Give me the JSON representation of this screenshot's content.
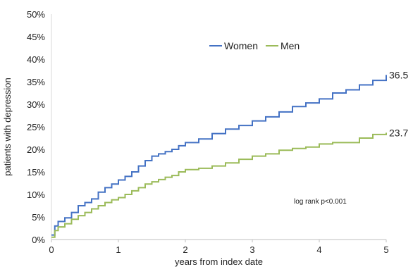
{
  "chart_data": {
    "type": "line",
    "xlabel": "years from index date",
    "ylabel": "patients with depression",
    "xlim": [
      0,
      5
    ],
    "ylim": [
      0,
      50
    ],
    "x_ticks": [
      "0",
      "1",
      "2",
      "3",
      "4",
      "5"
    ],
    "y_ticks": [
      "0%",
      "5%",
      "10%",
      "15%",
      "20%",
      "25%",
      "30%",
      "35%",
      "40%",
      "45%",
      "50%"
    ],
    "grid": false,
    "legend_position": "top-center",
    "annotation": "log rank p<0.001",
    "series": [
      {
        "name": "Women",
        "color": "#4472C4",
        "end_label": "36.5",
        "x": [
          0,
          0.05,
          0.1,
          0.2,
          0.3,
          0.4,
          0.5,
          0.6,
          0.7,
          0.8,
          0.9,
          1.0,
          1.1,
          1.2,
          1.3,
          1.4,
          1.5,
          1.6,
          1.7,
          1.8,
          1.9,
          2.0,
          2.2,
          2.4,
          2.6,
          2.8,
          3.0,
          3.2,
          3.4,
          3.6,
          3.8,
          4.0,
          4.2,
          4.4,
          4.6,
          4.8,
          5.0
        ],
        "y": [
          1.0,
          3.0,
          4.0,
          4.8,
          6.0,
          7.5,
          8.2,
          9.0,
          10.5,
          11.5,
          12.3,
          13.2,
          14.0,
          15.0,
          16.3,
          17.5,
          18.5,
          19.0,
          19.5,
          20.0,
          20.8,
          21.5,
          22.3,
          23.5,
          24.5,
          25.3,
          26.3,
          27.2,
          28.3,
          29.5,
          30.3,
          31.2,
          32.5,
          33.2,
          34.3,
          35.3,
          36.5
        ]
      },
      {
        "name": "Men",
        "color": "#9BBB59",
        "end_label": "23.7",
        "x": [
          0,
          0.05,
          0.1,
          0.2,
          0.3,
          0.4,
          0.5,
          0.6,
          0.7,
          0.8,
          0.9,
          1.0,
          1.1,
          1.2,
          1.3,
          1.4,
          1.5,
          1.6,
          1.7,
          1.8,
          1.9,
          2.0,
          2.2,
          2.4,
          2.6,
          2.8,
          3.0,
          3.2,
          3.4,
          3.6,
          3.8,
          4.0,
          4.2,
          4.4,
          4.6,
          4.8,
          5.0
        ],
        "y": [
          0.5,
          2.0,
          2.8,
          3.5,
          4.5,
          5.3,
          6.0,
          6.8,
          7.5,
          8.2,
          8.8,
          9.3,
          10.0,
          10.8,
          11.5,
          12.3,
          12.8,
          13.3,
          13.8,
          14.2,
          15.0,
          15.5,
          15.8,
          16.3,
          17.0,
          17.8,
          18.5,
          19.0,
          19.8,
          20.2,
          20.5,
          21.2,
          21.5,
          21.5,
          22.5,
          23.3,
          23.7
        ]
      }
    ]
  }
}
